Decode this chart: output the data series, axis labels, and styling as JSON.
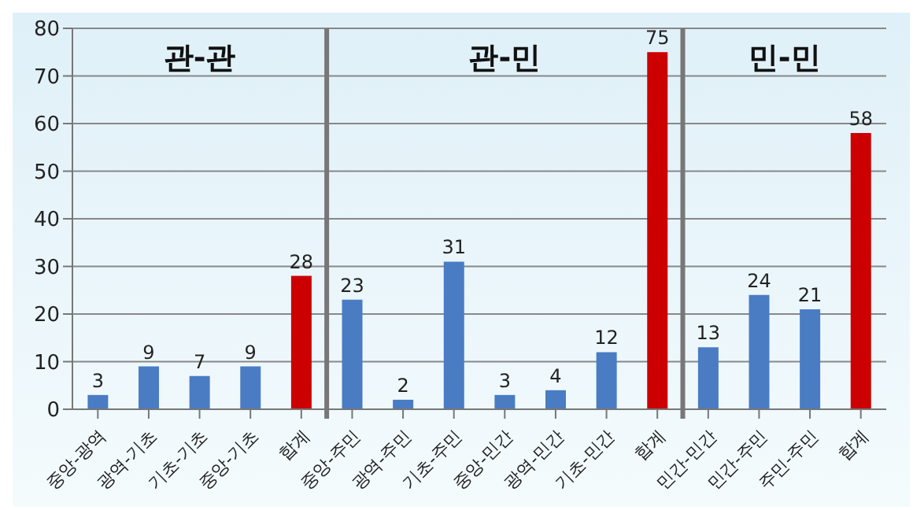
{
  "chart_data": {
    "type": "bar",
    "categories": [
      "중앙-광역",
      "광역-기초",
      "기초-기초",
      "중앙-기초",
      "합계",
      "중앙-주민",
      "광역-주민",
      "기초-주민",
      "중앙-민간",
      "광역-민간",
      "기초-민간",
      "합계",
      "민간-민간",
      "민간-주민",
      "주민-주민",
      "합계"
    ],
    "values": [
      3,
      9,
      7,
      9,
      28,
      23,
      2,
      31,
      3,
      4,
      12,
      75,
      13,
      24,
      21,
      58
    ],
    "colors": [
      "#4a7cc4",
      "#4a7cc4",
      "#4a7cc4",
      "#4a7cc4",
      "#cc0000",
      "#4a7cc4",
      "#4a7cc4",
      "#4a7cc4",
      "#4a7cc4",
      "#4a7cc4",
      "#4a7cc4",
      "#cc0000",
      "#4a7cc4",
      "#4a7cc4",
      "#4a7cc4",
      "#cc0000"
    ],
    "annotations": [
      "관-관",
      "관-민",
      "민-민"
    ],
    "ylim": [
      0,
      80
    ],
    "yticks": [
      0,
      10,
      20,
      30,
      40,
      50,
      60,
      70,
      80
    ],
    "grid": "y",
    "data_labels": true,
    "legend": false
  }
}
